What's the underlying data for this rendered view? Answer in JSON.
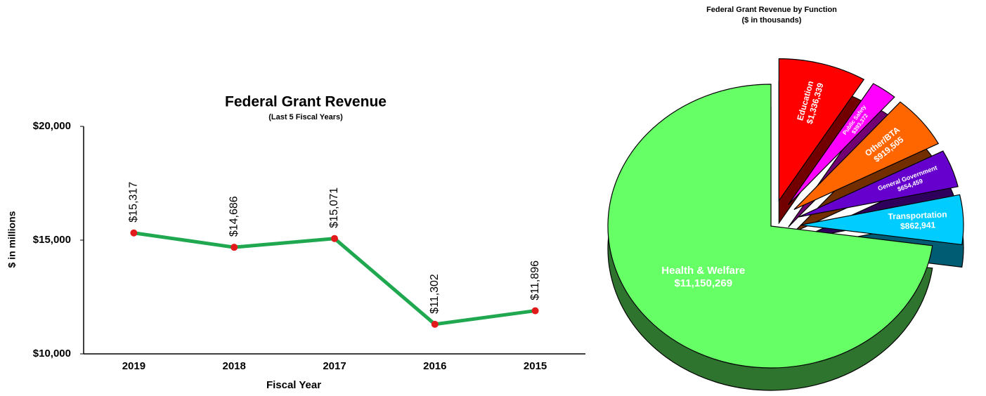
{
  "chart_data": [
    {
      "type": "line",
      "title": "Federal Grant Revenue",
      "subtitle": "(Last 5 Fiscal Years)",
      "x_label": "Fiscal Year",
      "y_label": "$ in millions",
      "categories": [
        "2019",
        "2018",
        "2017",
        "2016",
        "2015"
      ],
      "values": [
        15317,
        14686,
        15071,
        11302,
        11896
      ],
      "value_labels": [
        "$15,317",
        "$14,686",
        "$15,071",
        "$11,302",
        "$11,896"
      ],
      "color": "#1fa84f",
      "marker_color": "#e31a1c",
      "ylim": [
        10000,
        20000
      ],
      "yticks": [
        {
          "value": 10000,
          "label": "$10,000"
        },
        {
          "value": 15000,
          "label": "$15,000"
        },
        {
          "value": 20000,
          "label": "$20,000"
        }
      ],
      "grid": false
    },
    {
      "type": "pie",
      "title": "Federal Grant Revenue by Function",
      "subtitle": "($ in thousands)",
      "categories": [
        "Education",
        "Public Safety",
        "Other/BTA",
        "General Government",
        "Transportation",
        "Health & Welfare"
      ],
      "values": [
        1336339,
        393372,
        919505,
        654459,
        862941,
        11150269
      ],
      "value_labels": [
        "$1,336,339",
        "$393,372",
        "$919,505",
        "$654,459",
        "$862,941",
        "$11,150,269"
      ],
      "colors": [
        "#ff0000",
        "#ff00ff",
        "#ff6600",
        "#6600cc",
        "#00ccff",
        "#66ff66"
      ]
    }
  ]
}
